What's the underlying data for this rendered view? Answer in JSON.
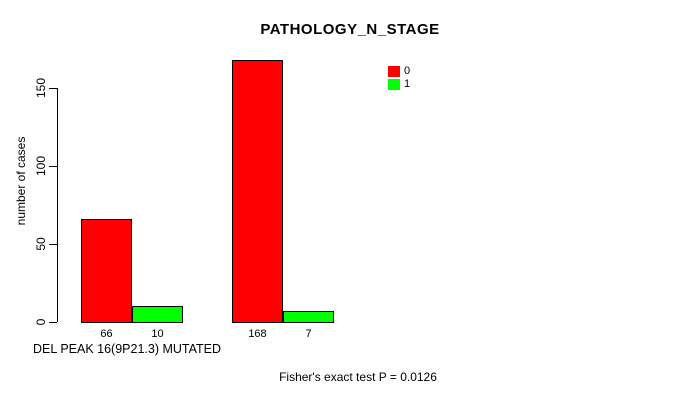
{
  "chart_data": {
    "type": "bar",
    "title": "PATHOLOGY_N_STAGE",
    "ylabel": "number of cases",
    "xlabel": "DEL PEAK 16(9P21.3) MUTATED",
    "footnote": "Fisher's exact test P = 0.0126",
    "ylim": [
      0,
      150
    ],
    "yticks": [
      0,
      50,
      100,
      150
    ],
    "grid": false,
    "legend_position": "top-right-inside",
    "legend": [
      {
        "label": "0",
        "color": "#ff0000"
      },
      {
        "label": "1",
        "color": "#00ff00"
      }
    ],
    "groups": [
      {
        "bars": [
          {
            "series": "0",
            "value": 66,
            "label": "66"
          },
          {
            "series": "1",
            "value": 10,
            "label": "10"
          }
        ]
      },
      {
        "bars": [
          {
            "series": "0",
            "value": 168,
            "label": "168"
          },
          {
            "series": "1",
            "value": 7,
            "label": "7"
          }
        ]
      }
    ],
    "colors": {
      "axis": "#000000",
      "text": "#000000",
      "background": "#ffffff"
    }
  }
}
